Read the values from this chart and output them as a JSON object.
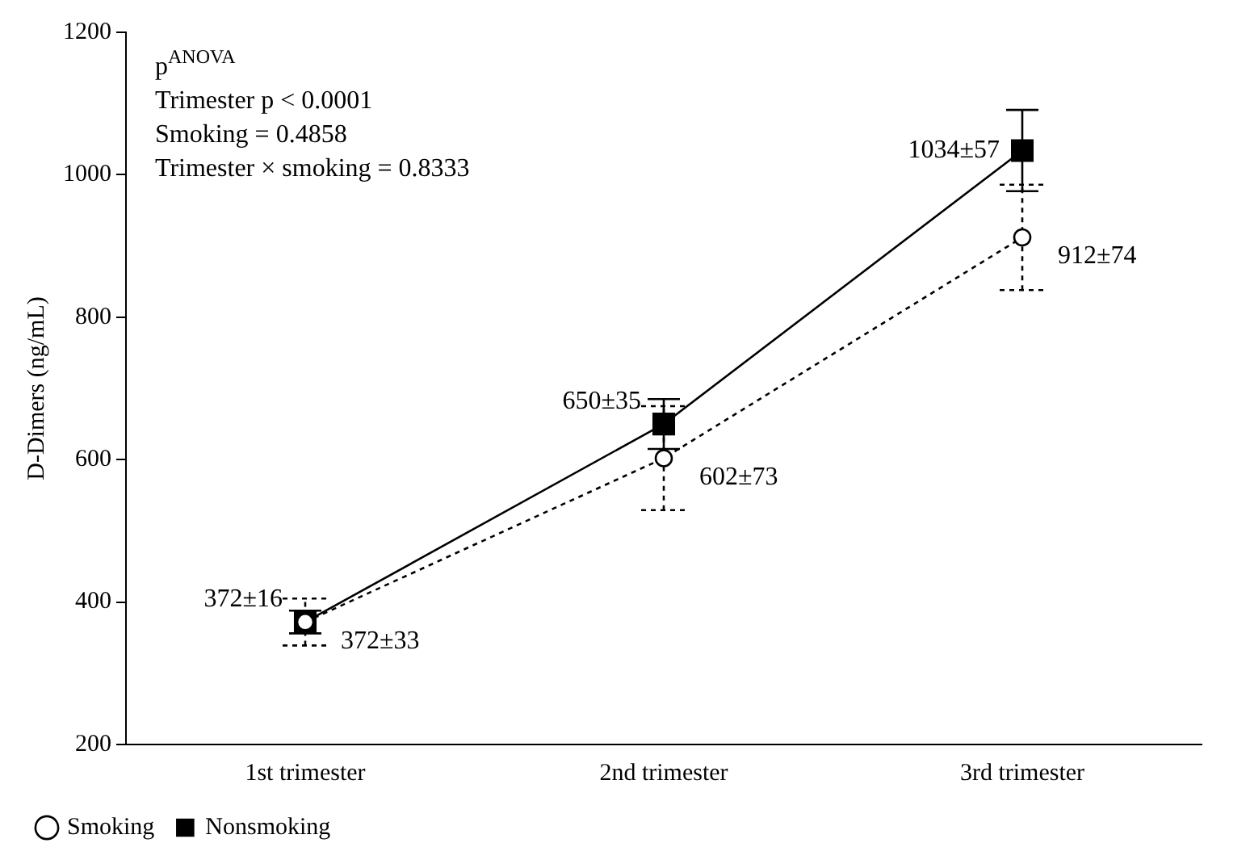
{
  "chart_data": {
    "type": "line",
    "ylabel": "D-Dimers (ng/mL)",
    "categories": [
      "1st trimester",
      "2nd trimester",
      "3rd trimester"
    ],
    "series": [
      {
        "name": "Smoking",
        "color": "#000000",
        "values": [
          372,
          602,
          912
        ],
        "errors": [
          33,
          73,
          74
        ],
        "value_labels": [
          "372±33",
          "602±73",
          "912±74"
        ],
        "marker": "circle",
        "line_style": "dotted"
      },
      {
        "name": "Nonsmoking",
        "color": "#000000",
        "values": [
          372,
          650,
          1034
        ],
        "errors": [
          16,
          35,
          57
        ],
        "value_labels": [
          "372±16",
          "650±35",
          "1034±57"
        ],
        "marker": "square",
        "line_style": "solid"
      }
    ],
    "ylim": [
      200,
      1200
    ],
    "yticks": [
      200,
      400,
      600,
      800,
      1000,
      1200
    ],
    "grid": false,
    "legend": "bottom left",
    "annotations": [
      "p$^{ANOVA}$",
      "Trimester p < 0.0001",
      "Smoking = 0.4858",
      "Trimester × smoking = 0.8333"
    ]
  }
}
